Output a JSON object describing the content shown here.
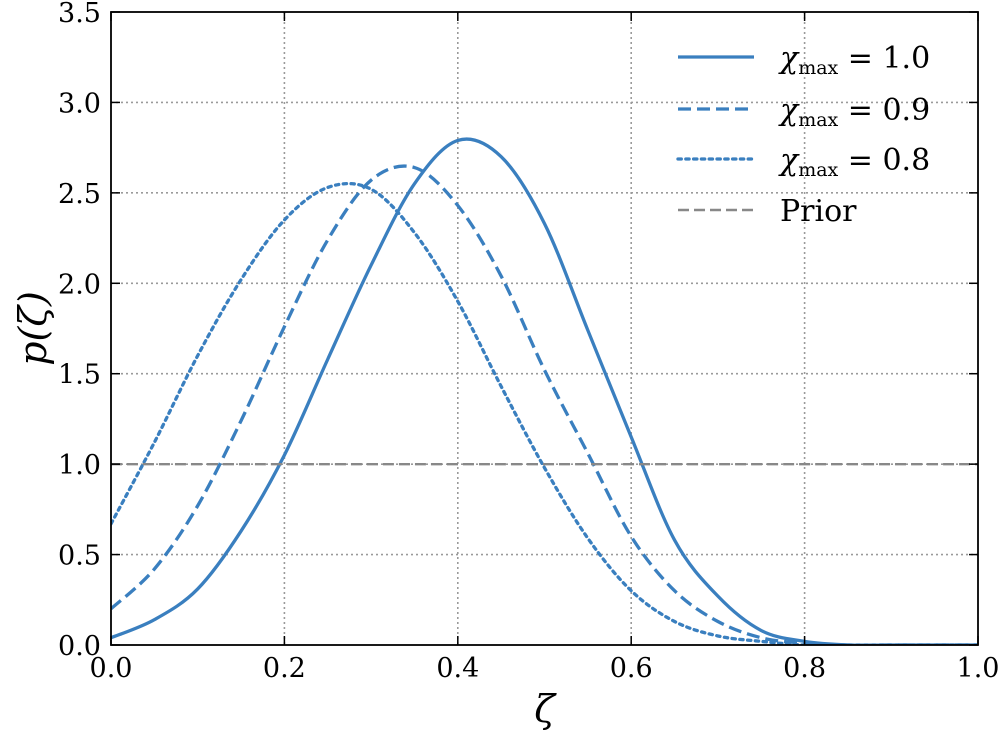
{
  "chart_data": {
    "type": "line",
    "xlabel": "ζ",
    "ylabel": "p(ζ)",
    "xlim": [
      0.0,
      1.0
    ],
    "ylim": [
      0.0,
      3.5
    ],
    "xticks": [
      "0.0",
      "0.2",
      "0.4",
      "0.6",
      "0.8",
      "1.0"
    ],
    "yticks": [
      "0.0",
      "0.5",
      "1.0",
      "1.5",
      "2.0",
      "2.5",
      "3.0",
      "3.5"
    ],
    "grid": true,
    "legend_position": "top-right",
    "colors": {
      "series": "#3a7fbf",
      "prior": "#888888",
      "axis": "#000000",
      "grid": "#9a9a9a"
    },
    "series": [
      {
        "name": "χmax = 1.0",
        "label_parts": {
          "base": "χ",
          "sub": "max",
          "rest": " = 1.0"
        },
        "line_style": "solid",
        "x": [
          0.0,
          0.05,
          0.1,
          0.15,
          0.2,
          0.25,
          0.3,
          0.35,
          0.4,
          0.45,
          0.5,
          0.55,
          0.6,
          0.65,
          0.7,
          0.75,
          0.8,
          0.85,
          0.9,
          0.95,
          1.0
        ],
        "values": [
          0.04,
          0.14,
          0.31,
          0.63,
          1.05,
          1.58,
          2.1,
          2.55,
          2.79,
          2.7,
          2.33,
          1.74,
          1.15,
          0.58,
          0.27,
          0.08,
          0.02,
          0.0,
          0.0,
          0.0,
          0.0
        ]
      },
      {
        "name": "χmax = 0.9",
        "label_parts": {
          "base": "χ",
          "sub": "max",
          "rest": " = 0.9"
        },
        "line_style": "dashed",
        "x": [
          0.0,
          0.05,
          0.1,
          0.15,
          0.2,
          0.25,
          0.3,
          0.35,
          0.4,
          0.45,
          0.5,
          0.55,
          0.6,
          0.65,
          0.7,
          0.75,
          0.8,
          0.85,
          0.9,
          0.95,
          1.0
        ],
        "values": [
          0.2,
          0.42,
          0.77,
          1.24,
          1.76,
          2.24,
          2.57,
          2.64,
          2.43,
          2.04,
          1.52,
          1.06,
          0.6,
          0.3,
          0.13,
          0.04,
          0.01,
          0.0,
          0.0,
          0.0,
          0.0
        ]
      },
      {
        "name": "χmax = 0.8",
        "label_parts": {
          "base": "χ",
          "sub": "max",
          "rest": " = 0.8"
        },
        "line_style": "dotted",
        "x": [
          0.0,
          0.05,
          0.1,
          0.15,
          0.2,
          0.25,
          0.3,
          0.35,
          0.4,
          0.45,
          0.5,
          0.55,
          0.6,
          0.65,
          0.7,
          0.75,
          0.8,
          0.85,
          0.9,
          0.95,
          1.0
        ],
        "values": [
          0.67,
          1.12,
          1.6,
          2.02,
          2.35,
          2.53,
          2.52,
          2.28,
          1.9,
          1.43,
          0.98,
          0.59,
          0.3,
          0.13,
          0.05,
          0.02,
          0.0,
          0.0,
          0.0,
          0.0,
          0.0
        ]
      },
      {
        "name": "Prior",
        "label_parts": {
          "base": "Prior",
          "sub": "",
          "rest": ""
        },
        "line_style": "prior-dashed",
        "x": [
          0.0,
          1.0
        ],
        "values": [
          1.0,
          1.0
        ]
      }
    ]
  }
}
